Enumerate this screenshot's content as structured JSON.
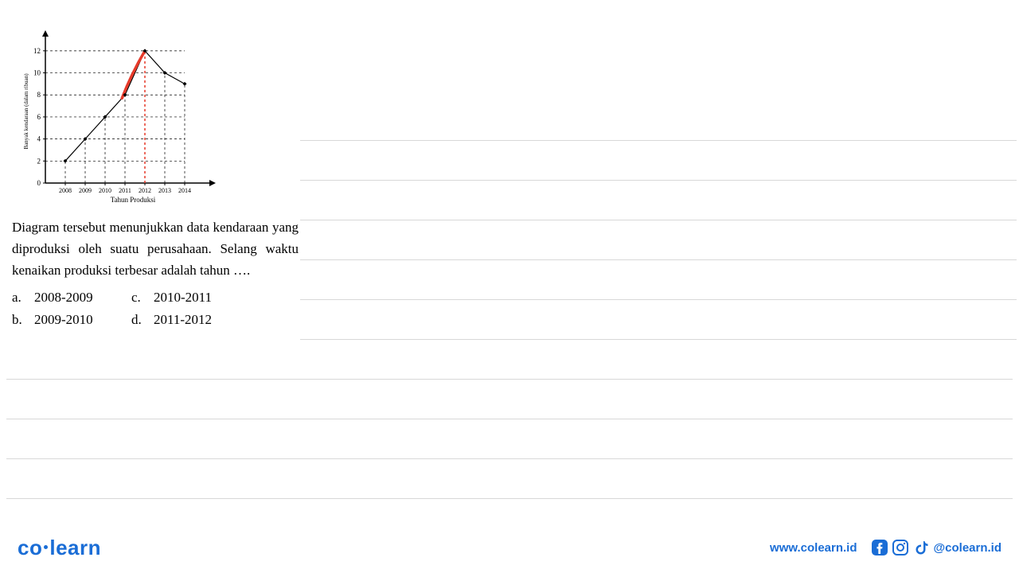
{
  "chart": {
    "type": "line",
    "ylabel": "Banyak kendaraan (dalam ribuan)",
    "xlabel": "Tahun Produksi",
    "x_categories": [
      "2008",
      "2009",
      "2010",
      "2011",
      "2012",
      "2013",
      "2014"
    ],
    "y_ticks": [
      0,
      2,
      4,
      6,
      8,
      10,
      12
    ],
    "values": [
      2,
      4,
      6,
      8,
      12,
      10,
      9
    ],
    "ylim": [
      0,
      13
    ],
    "x_start_offset": 1,
    "axis_color": "#000000",
    "line_color": "#000000",
    "marker_color": "#000000",
    "marker_style": "diamond",
    "marker_size": 5,
    "line_width": 1.2,
    "grid_dash": "3,3",
    "grid_color": "#000000",
    "ylabel_fontsize": 7,
    "tick_fontsize": 9,
    "xlabel_fontsize": 9,
    "highlight": {
      "color": "#e63a2a",
      "segment_from_index": 3,
      "segment_to_index": 4,
      "stroke_width": 3.5
    }
  },
  "question": {
    "text": "Diagram tersebut menunjukkan data kendaraan yang diproduksi oleh suatu perusahaan. Selang waktu kenaikan produksi terbesar adalah tahun ….",
    "options": [
      {
        "label": "a.",
        "text": "2008-2009"
      },
      {
        "label": "b.",
        "text": "2009-2010"
      },
      {
        "label": "c.",
        "text": "2010-2011"
      },
      {
        "label": "d.",
        "text": "2011-2012"
      }
    ]
  },
  "ruled_lines": {
    "partial_top_positions": [
      176,
      226,
      276,
      326,
      376,
      426
    ],
    "full_positions": [
      476,
      526,
      576,
      626
    ],
    "line_color": "#d8d8d8"
  },
  "footer": {
    "logo_parts": [
      "co",
      "learn"
    ],
    "logo_color": "#1a6dd6",
    "url": "www.colearn.id",
    "handle": "@colearn.id",
    "social_icons": [
      "facebook-icon",
      "instagram-icon",
      "tiktok-icon"
    ]
  }
}
